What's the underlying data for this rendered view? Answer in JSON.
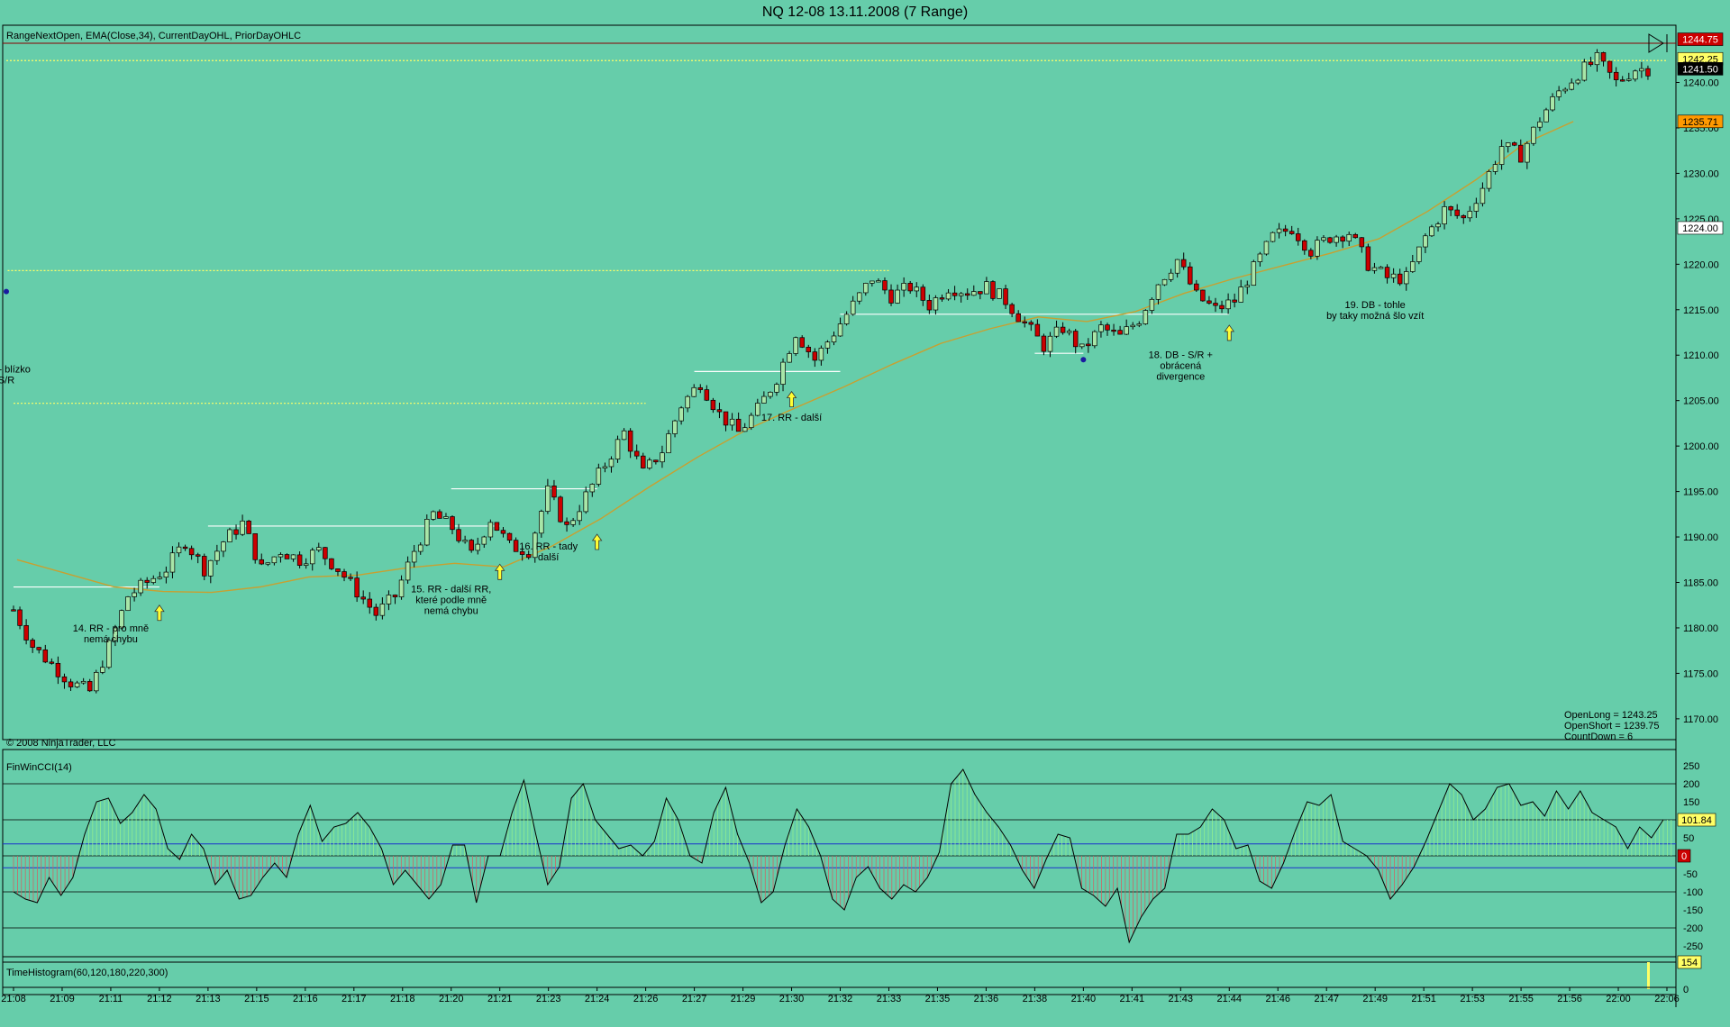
{
  "window": {
    "title": "NQ 12-08  13.11.2008 (7 Range)"
  },
  "price_panel": {
    "indicators_label": "RangeNextOpen, EMA(Close,34), CurrentDayOHL, PriorDayOHLC",
    "copyright": "© 2008 NinjaTrader, LLC",
    "info": [
      "OpenLong = 1243.25",
      "OpenShort = 1239.75",
      "CountDown = 6"
    ],
    "price_tags": [
      {
        "label": "1244.75",
        "value": 1244.75,
        "color": "#cc0000",
        "text_color": "#ffffff"
      },
      {
        "label": "1242.25",
        "value": 1242.6,
        "color": "#ffff66",
        "text_color": "#000000"
      },
      {
        "label": "1241.50",
        "value": 1241.5,
        "color": "#000000",
        "text_color": "#ffffff"
      },
      {
        "label": "1235.71",
        "value": 1235.71,
        "color": "#ff9900",
        "text_color": "#000000"
      },
      {
        "label": "1224.00",
        "value": 1224.0,
        "color": "#ffffff",
        "text_color": "#000000"
      }
    ],
    "annotations": [
      {
        "lines": [
          "14. RR - pro mně",
          "nemá chybu"
        ],
        "x": "21:11",
        "y": 1179.6
      },
      {
        "lines": [
          "15. RR - další RR,",
          "které podle mně",
          "nemá chybu"
        ],
        "x": "21:20",
        "y": 1183.9
      },
      {
        "lines": [
          "16. RR - tady",
          "další"
        ],
        "x": "21:23",
        "y": 1188.6
      },
      {
        "lines": [
          "17. RR - další"
        ],
        "x": "21:30",
        "y": 1202.8
      },
      {
        "lines": [
          "DB - blízko",
          "S/R"
        ],
        "x": "21:39",
        "y": 1208.1
      },
      {
        "lines": [
          "18. DB - S/R +",
          "obrácená",
          "divergence"
        ],
        "x": "21:43",
        "y": 1209.7
      },
      {
        "lines": [
          "19. DB - tohle",
          "by taky možná šlo vzít"
        ],
        "x": "21:49",
        "y": 1215.2
      }
    ]
  },
  "cci_panel": {
    "label": "FinWinCCI(14)",
    "last_value_tag": "101.84",
    "zero_tag": "0"
  },
  "hist_panel": {
    "label": "TimeHistogram(60,120,180,220,300)",
    "value_tag": "154"
  },
  "colors": {
    "background": "#66cdaa",
    "up_candle": "#a8e6a8",
    "down_candle": "#cc0000",
    "ema": "#c8a030",
    "level_white": "#ffffff",
    "level_yellow": "#ffff66",
    "cci_positive": "#90ee90",
    "cci_negative": "#cc6666"
  },
  "chart_data": [
    {
      "type": "candlestick",
      "title": "NQ 12-08  13.11.2008 (7 Range)",
      "x_ticks": [
        "21:08",
        "21:09",
        "21:11",
        "21:12",
        "21:13",
        "21:15",
        "21:16",
        "21:17",
        "21:18",
        "21:20",
        "21:21",
        "21:23",
        "21:24",
        "21:26",
        "21:27",
        "21:29",
        "21:30",
        "21:32",
        "21:33",
        "21:35",
        "21:36",
        "21:38",
        "21:40",
        "21:41",
        "21:43",
        "21:44",
        "21:46",
        "21:47",
        "21:49",
        "21:51",
        "21:53",
        "21:55",
        "21:56",
        "22:00",
        "22:06"
      ],
      "ylim": [
        1168.5,
        1245.5
      ],
      "y_ticks": [
        1170,
        1175,
        1180,
        1185,
        1190,
        1195,
        1200,
        1205,
        1210,
        1215,
        1220,
        1225,
        1230,
        1235,
        1240
      ],
      "close_path": [
        1182.0,
        1178.0,
        1176.0,
        1174.0,
        1173.0,
        1178.0,
        1183.5,
        1185.0,
        1186.5,
        1189.5,
        1186.5,
        1189.5,
        1191.5,
        1186.5,
        1188.5,
        1187.5,
        1188.5,
        1186.5,
        1184.0,
        1181.5,
        1183.5,
        1188.5,
        1192.5,
        1191.0,
        1188.0,
        1192.0,
        1189.0,
        1188.5,
        1195.0,
        1191.0,
        1194.5,
        1198.0,
        1201.5,
        1197.0,
        1199.5,
        1204.5,
        1207.0,
        1203.5,
        1201.5,
        1204.0,
        1207.5,
        1212.5,
        1209.5,
        1212.5,
        1215.5,
        1218.5,
        1216.5,
        1217.5,
        1215.5,
        1217.5,
        1217.0,
        1217.5,
        1216.0,
        1213.5,
        1211.0,
        1213.0,
        1210.5,
        1213.0,
        1212.0,
        1214.0,
        1218.0,
        1220.5,
        1216.5,
        1215.0,
        1216.0,
        1219.5,
        1223.0,
        1224.0,
        1221.5,
        1223.0,
        1223.5,
        1220.0,
        1218.5,
        1218.5,
        1223.0,
        1226.0,
        1225.0,
        1228.5,
        1233.0,
        1232.0,
        1236.0,
        1239.0,
        1241.0,
        1242.5,
        1240.0,
        1241.5
      ],
      "ema34": [
        1187.5,
        1186.0,
        1184.5,
        1184.0,
        1183.9,
        1184.5,
        1185.6,
        1185.8,
        1186.6,
        1187.1,
        1186.7,
        1189.0,
        1192.0,
        1195.5,
        1198.8,
        1201.8,
        1204.2,
        1206.5,
        1209.0,
        1211.3,
        1212.9,
        1214.2,
        1213.7,
        1214.8,
        1216.8,
        1218.4,
        1219.8,
        1221.2,
        1222.8,
        1225.8,
        1229.3,
        1233.3,
        1235.7
      ],
      "ema_x_ticks_index": [
        0,
        1,
        2,
        3,
        4,
        5,
        6,
        7,
        8,
        9,
        10,
        11,
        12,
        13,
        14,
        15,
        16,
        17,
        18,
        19,
        20,
        21,
        22,
        23,
        24,
        25,
        26,
        27,
        28,
        29,
        30,
        31,
        32
      ],
      "levels": [
        {
          "name": "prior-low",
          "price": 1184.5,
          "from": "21:08",
          "to": "21:12",
          "color": "white"
        },
        {
          "name": "level-1191",
          "price": 1191.2,
          "from": "21:13",
          "to": "21:21",
          "color": "white"
        },
        {
          "name": "level-1195",
          "price": 1195.3,
          "from": "21:20",
          "to": "21:24",
          "color": "white"
        },
        {
          "name": "level-1208",
          "price": 1208.2,
          "from": "21:27",
          "to": "21:32",
          "color": "white"
        },
        {
          "name": "level-1214.5",
          "price": 1214.5,
          "from": "21:32",
          "to": "21:44",
          "color": "white"
        },
        {
          "name": "level-1210",
          "price": 1210.2,
          "from": "21:38",
          "to": "21:40",
          "color": "white"
        },
        {
          "name": "level-1218",
          "price": 1218.1,
          "from": "21:48",
          "to": "21:50",
          "color": "white"
        },
        {
          "name": "prior-close",
          "price": 1204.7,
          "from": "21:08",
          "to": "21:26",
          "color": "yellow"
        },
        {
          "name": "high-1219",
          "price": 1219.3,
          "from": "21:33",
          "to": "21:42",
          "color": "yellow"
        },
        {
          "name": "high-1224.6",
          "price": 1224.6,
          "from": "21:45",
          "to": "21:52",
          "color": "yellow"
        },
        {
          "name": "high-1242.4",
          "price": 1242.4,
          "from": "21:58",
          "to": "22:06",
          "color": "yellow"
        }
      ],
      "arrows": [
        {
          "x": "21:12",
          "price": 1182.5
        },
        {
          "x": "21:21",
          "price": 1187.0
        },
        {
          "x": "21:24",
          "price": 1190.3
        },
        {
          "x": "21:30",
          "price": 1206.0
        },
        {
          "x": "21:44",
          "price": 1213.3
        }
      ],
      "dots": [
        {
          "x": "21:40",
          "price": 1209.5
        },
        {
          "x": "21:50",
          "price": 1217.0
        }
      ]
    },
    {
      "type": "line",
      "title": "FinWinCCI(14)",
      "ylim": [
        -275,
        275
      ],
      "y_ticks": [
        250,
        200,
        150,
        100,
        50,
        0,
        -50,
        -100,
        -150,
        -200,
        -250
      ],
      "reference_lines": [
        200,
        100,
        -100,
        -200
      ],
      "band_lines": [
        33,
        -33
      ],
      "values": [
        -100,
        -120,
        -130,
        -60,
        -110,
        -60,
        60,
        150,
        160,
        90,
        120,
        170,
        130,
        20,
        -10,
        60,
        20,
        -80,
        -40,
        -120,
        -110,
        -60,
        -20,
        -60,
        60,
        140,
        40,
        80,
        90,
        120,
        80,
        20,
        -80,
        -40,
        -80,
        -120,
        -80,
        30,
        30,
        -130,
        0,
        0,
        120,
        210,
        60,
        -80,
        -30,
        160,
        200,
        100,
        60,
        20,
        30,
        0,
        40,
        160,
        100,
        0,
        -20,
        120,
        190,
        60,
        -20,
        -130,
        -100,
        30,
        130,
        80,
        0,
        -120,
        -150,
        -60,
        -30,
        -90,
        -120,
        -80,
        -100,
        -60,
        10,
        200,
        240,
        170,
        120,
        80,
        30,
        -40,
        -90,
        -10,
        60,
        50,
        -90,
        -110,
        -140,
        -90,
        -240,
        -170,
        -120,
        -90,
        60,
        60,
        80,
        130,
        100,
        20,
        30,
        -70,
        -90,
        -20,
        70,
        150,
        140,
        170,
        40,
        20,
        0,
        -40,
        -120,
        -80,
        -30,
        40,
        120,
        200,
        170,
        100,
        130,
        190,
        200,
        140,
        150,
        110,
        180,
        130,
        180,
        120,
        100,
        80,
        20,
        80,
        50,
        100
      ]
    },
    {
      "type": "bar",
      "title": "TimeHistogram(60,120,180,220,300)",
      "ylim": [
        0,
        154
      ],
      "values": [
        154
      ]
    }
  ]
}
